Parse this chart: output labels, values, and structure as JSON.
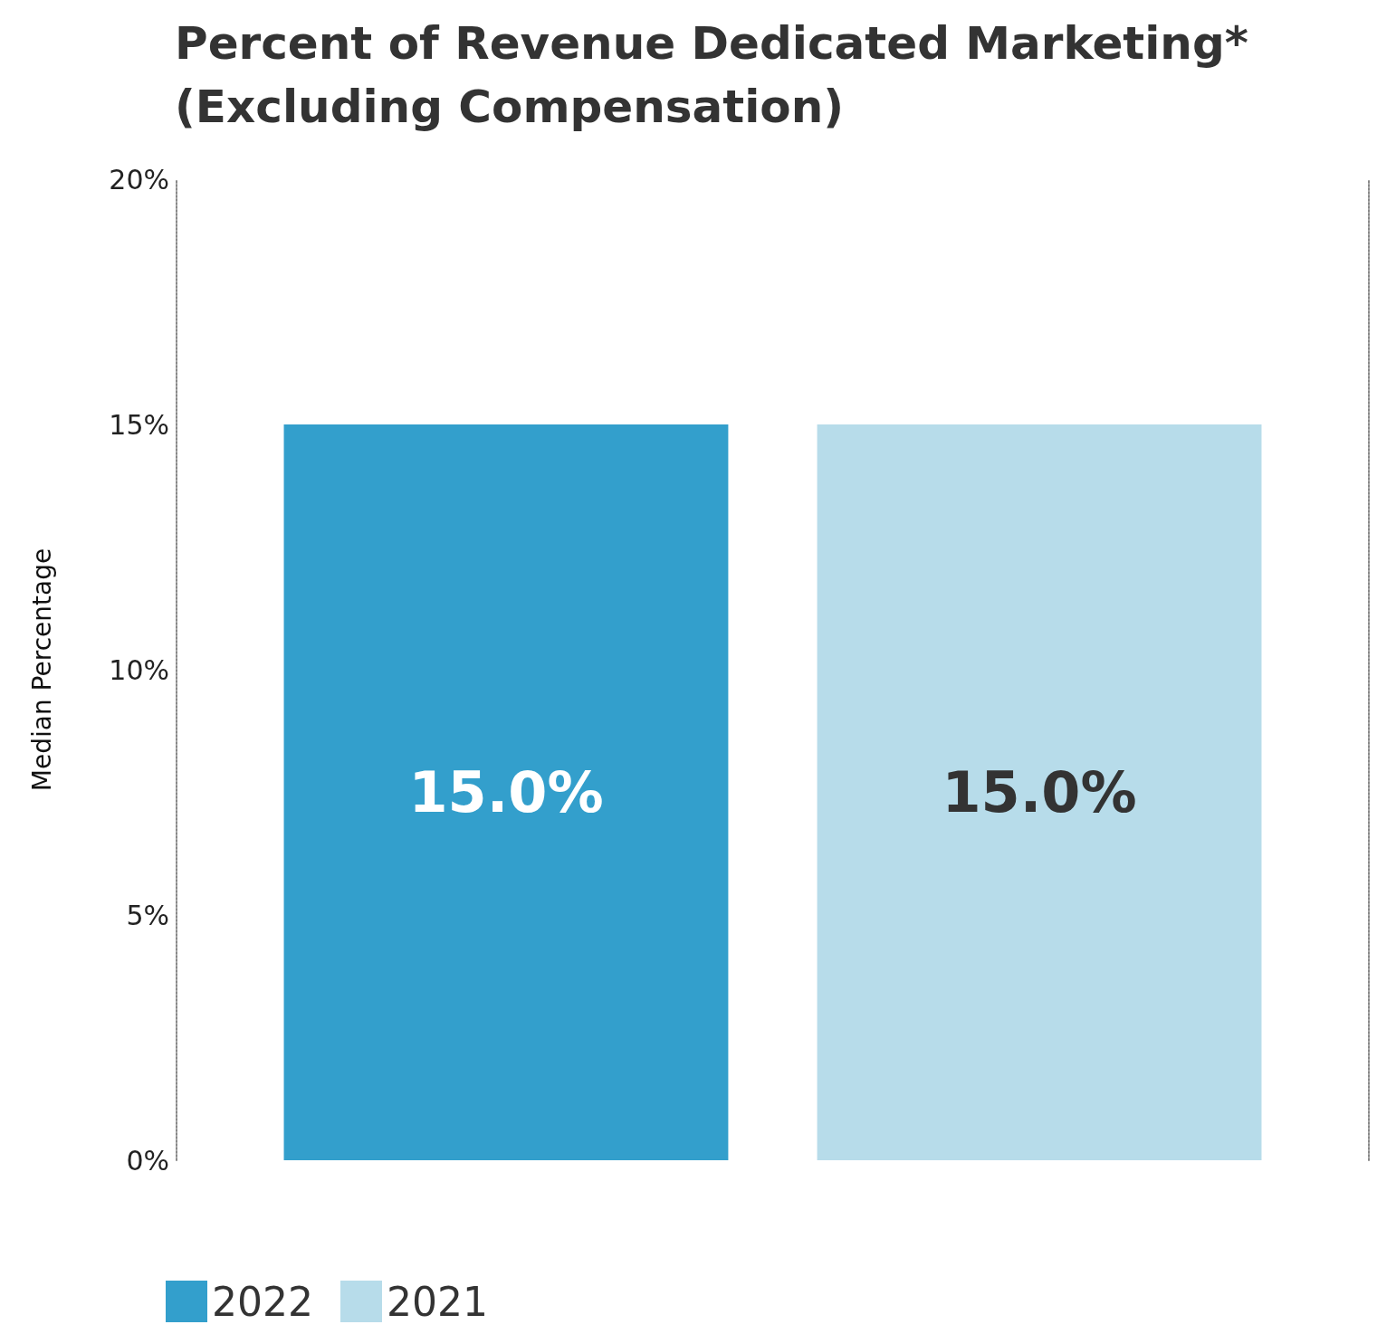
{
  "chart_data": {
    "type": "bar",
    "title": "Percent of Revenue Dedicated Marketing*\n(Excluding Compensation)",
    "ylabel": "Median Percentage",
    "categories": [
      null
    ],
    "series": [
      {
        "name": "2022",
        "color": "#339fcc",
        "values": [
          15.0
        ]
      },
      {
        "name": "2021",
        "color": "#b7dcea",
        "values": [
          15.0
        ]
      }
    ],
    "value_labels": [
      "15.0%",
      "15.0%"
    ],
    "ylim": [
      0,
      20
    ],
    "yticks": [
      {
        "value": 0,
        "label": "0%"
      },
      {
        "value": 5,
        "label": "5%"
      },
      {
        "value": 10,
        "label": "10%"
      },
      {
        "value": 15,
        "label": "15%"
      },
      {
        "value": 20,
        "label": "20%"
      }
    ],
    "legend": "bottom left"
  }
}
